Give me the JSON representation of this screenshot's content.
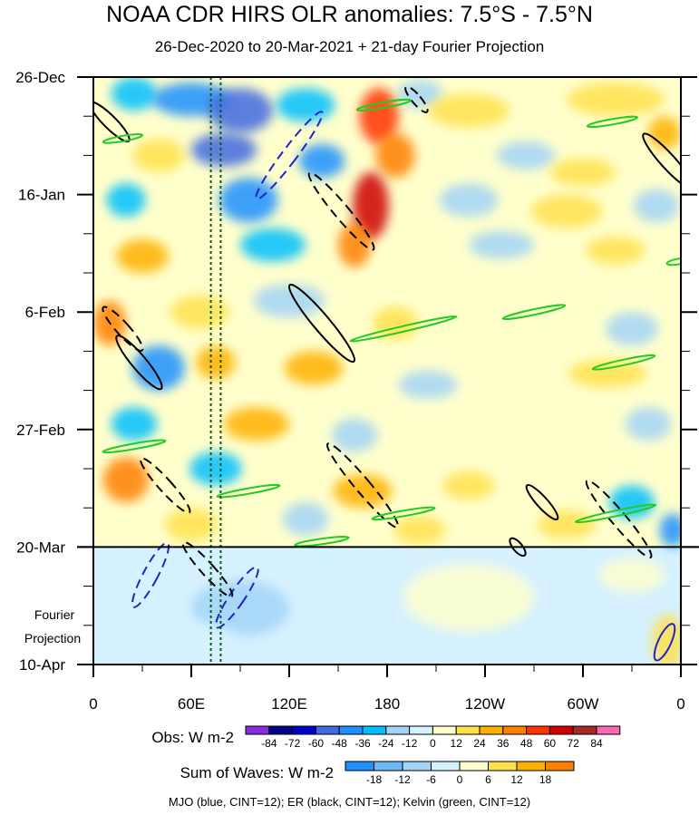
{
  "title": "NOAA CDR HIRS OLR anomalies: 7.5°S - 7.5°N",
  "subtitle": "26-Dec-2020 to 20-Mar-2021 + 21-day Fourier Projection",
  "projection_label_line1": "Fourier",
  "projection_label_line2": "Projection",
  "footer": "MJO (blue, CINT=12); ER (black, CINT=12); Kelvin (green, CINT=12)",
  "colors": {
    "mjo": "#2222cc",
    "er": "#000000",
    "kelvin": "#22cc22",
    "projection_line": "#000000"
  },
  "chart_data": {
    "type": "heatmap",
    "title": "NOAA CDR HIRS OLR anomalies: 7.5°S - 7.5°N",
    "subtitle": "26-Dec-2020 to 20-Mar-2021 + 21-day Fourier Projection",
    "x_ticks": [
      {
        "lon": 0,
        "label": "0"
      },
      {
        "lon": 60,
        "label": "60E"
      },
      {
        "lon": 120,
        "label": "120E"
      },
      {
        "lon": 180,
        "label": "180"
      },
      {
        "lon": 240,
        "label": "120W"
      },
      {
        "lon": 300,
        "label": "60W"
      },
      {
        "lon": 360,
        "label": "0"
      }
    ],
    "xlim": [
      0,
      360
    ],
    "y_ticks": [
      {
        "day": 0,
        "label": "26-Dec"
      },
      {
        "day": 21,
        "label": "16-Jan"
      },
      {
        "day": 42,
        "label": "6-Feb"
      },
      {
        "day": 63,
        "label": "27-Feb"
      },
      {
        "day": 84,
        "label": "20-Mar"
      },
      {
        "day": 105,
        "label": "10-Apr"
      }
    ],
    "ylim": [
      0,
      105
    ],
    "projection_start_day": 84,
    "reference_lon_lines": [
      72,
      78
    ],
    "obs_legend": {
      "label": "Obs: W m-2",
      "levels": [
        "-84",
        "-72",
        "-60",
        "-48",
        "-36",
        "-24",
        "-12",
        "0",
        "12",
        "24",
        "36",
        "48",
        "60",
        "72",
        "84"
      ],
      "colors": [
        "#8a2be2",
        "#00008b",
        "#0000cd",
        "#4169e1",
        "#1e90ff",
        "#00bfff",
        "#a3d4f7",
        "#d6f1ff",
        "#ffffcc",
        "#ffe14d",
        "#ffb000",
        "#ff7f00",
        "#ff3300",
        "#cc0000",
        "#a52a2a",
        "#ff69b4"
      ]
    },
    "waves_legend": {
      "label": "Sum of Waves: W m-2",
      "levels": [
        "-18",
        "-12",
        "-6",
        "0",
        "6",
        "12",
        "18"
      ],
      "colors": [
        "#1e90ff",
        "#6cb9f5",
        "#a3d4f7",
        "#d6f1ff",
        "#ffffcc",
        "#ffe14d",
        "#ffb000",
        "#ff7f00"
      ]
    },
    "anomaly_blobs": [
      {
        "lon": 25,
        "day": 3,
        "a": 14,
        "b": 3,
        "v": -30
      },
      {
        "lon": 60,
        "day": 4,
        "a": 24,
        "b": 3,
        "v": -40
      },
      {
        "lon": 90,
        "day": 6,
        "a": 20,
        "b": 4,
        "v": -55
      },
      {
        "lon": 130,
        "day": 5,
        "a": 18,
        "b": 3,
        "v": -35
      },
      {
        "lon": 175,
        "day": 7,
        "a": 12,
        "b": 5,
        "v": 55
      },
      {
        "lon": 200,
        "day": 3,
        "a": 14,
        "b": 2.5,
        "v": -15
      },
      {
        "lon": 230,
        "day": 6,
        "a": 25,
        "b": 3,
        "v": 18
      },
      {
        "lon": 320,
        "day": 4,
        "a": 30,
        "b": 3,
        "v": 22
      },
      {
        "lon": 350,
        "day": 10,
        "a": 10,
        "b": 3,
        "v": 28
      },
      {
        "lon": 40,
        "day": 14,
        "a": 16,
        "b": 3,
        "v": 24
      },
      {
        "lon": 80,
        "day": 13,
        "a": 20,
        "b": 3,
        "v": -48
      },
      {
        "lon": 140,
        "day": 15,
        "a": 14,
        "b": 3,
        "v": -42
      },
      {
        "lon": 185,
        "day": 14,
        "a": 12,
        "b": 4,
        "v": 48
      },
      {
        "lon": 265,
        "day": 14,
        "a": 18,
        "b": 2.5,
        "v": -14
      },
      {
        "lon": 300,
        "day": 17,
        "a": 20,
        "b": 2.5,
        "v": 20
      },
      {
        "lon": 20,
        "day": 22,
        "a": 12,
        "b": 3,
        "v": -26
      },
      {
        "lon": 95,
        "day": 22,
        "a": 18,
        "b": 4,
        "v": -38
      },
      {
        "lon": 170,
        "day": 23,
        "a": 11,
        "b": 6,
        "v": 72
      },
      {
        "lon": 230,
        "day": 22,
        "a": 18,
        "b": 3,
        "v": -20
      },
      {
        "lon": 290,
        "day": 24,
        "a": 22,
        "b": 3,
        "v": 15
      },
      {
        "lon": 345,
        "day": 23,
        "a": 14,
        "b": 3,
        "v": -22
      },
      {
        "lon": 30,
        "day": 32,
        "a": 16,
        "b": 3,
        "v": 30
      },
      {
        "lon": 110,
        "day": 30,
        "a": 20,
        "b": 3,
        "v": -32
      },
      {
        "lon": 160,
        "day": 30,
        "a": 10,
        "b": 4,
        "v": 45
      },
      {
        "lon": 250,
        "day": 30,
        "a": 20,
        "b": 2.5,
        "v": -12
      },
      {
        "lon": 320,
        "day": 31,
        "a": 18,
        "b": 2.5,
        "v": 16
      },
      {
        "lon": 10,
        "day": 44,
        "a": 10,
        "b": 4,
        "v": 40
      },
      {
        "lon": 65,
        "day": 42,
        "a": 18,
        "b": 3,
        "v": 24
      },
      {
        "lon": 120,
        "day": 40,
        "a": 22,
        "b": 3,
        "v": -22
      },
      {
        "lon": 185,
        "day": 44,
        "a": 14,
        "b": 3,
        "v": 22
      },
      {
        "lon": 270,
        "day": 44,
        "a": 20,
        "b": 2.5,
        "v": 12
      },
      {
        "lon": 330,
        "day": 45,
        "a": 16,
        "b": 3,
        "v": -20
      },
      {
        "lon": 40,
        "day": 52,
        "a": 16,
        "b": 4,
        "v": -45
      },
      {
        "lon": 75,
        "day": 51,
        "a": 12,
        "b": 3,
        "v": 32
      },
      {
        "lon": 135,
        "day": 52,
        "a": 18,
        "b": 3,
        "v": 26
      },
      {
        "lon": 205,
        "day": 55,
        "a": 18,
        "b": 2.5,
        "v": -14
      },
      {
        "lon": 315,
        "day": 53,
        "a": 24,
        "b": 2.5,
        "v": 14
      },
      {
        "lon": 25,
        "day": 62,
        "a": 14,
        "b": 3,
        "v": -30
      },
      {
        "lon": 100,
        "day": 62,
        "a": 20,
        "b": 3,
        "v": 28
      },
      {
        "lon": 160,
        "day": 64,
        "a": 14,
        "b": 3,
        "v": -20
      },
      {
        "lon": 250,
        "day": 63,
        "a": 18,
        "b": 2.5,
        "v": 12
      },
      {
        "lon": 340,
        "day": 62,
        "a": 14,
        "b": 3,
        "v": -18
      },
      {
        "lon": 20,
        "day": 72,
        "a": 14,
        "b": 4,
        "v": 44
      },
      {
        "lon": 75,
        "day": 70,
        "a": 16,
        "b": 3,
        "v": -24
      },
      {
        "lon": 165,
        "day": 74,
        "a": 18,
        "b": 3,
        "v": 36
      },
      {
        "lon": 230,
        "day": 73,
        "a": 16,
        "b": 2.5,
        "v": 14
      },
      {
        "lon": 330,
        "day": 76,
        "a": 14,
        "b": 3,
        "v": -34
      },
      {
        "lon": 60,
        "day": 80,
        "a": 16,
        "b": 3,
        "v": 24
      },
      {
        "lon": 130,
        "day": 79,
        "a": 14,
        "b": 3,
        "v": -22
      },
      {
        "lon": 200,
        "day": 81,
        "a": 16,
        "b": 2.5,
        "v": 18
      },
      {
        "lon": 290,
        "day": 80,
        "a": 18,
        "b": 2.5,
        "v": 16
      },
      {
        "lon": 355,
        "day": 81,
        "a": 8,
        "b": 3,
        "v": -44
      },
      {
        "lon": 20,
        "day": 92,
        "a": 40,
        "b": 6,
        "v": -8
      },
      {
        "lon": 90,
        "day": 95,
        "a": 30,
        "b": 5,
        "v": -14
      },
      {
        "lon": 150,
        "day": 90,
        "a": 20,
        "b": 4,
        "v": -8
      },
      {
        "lon": 230,
        "day": 93,
        "a": 40,
        "b": 6,
        "v": 7
      },
      {
        "lon": 330,
        "day": 89,
        "a": 20,
        "b": 3,
        "v": 12
      },
      {
        "lon": 352,
        "day": 101,
        "a": 10,
        "b": 5,
        "v": 14
      },
      {
        "lon": 50,
        "day": 101,
        "a": 40,
        "b": 4,
        "v": -8
      }
    ],
    "wave_contours": [
      {
        "wave": "MJO",
        "value": -12,
        "lon": 120,
        "day": 14,
        "rx": 8,
        "ry": 60,
        "angle": 37
      },
      {
        "wave": "MJO",
        "value": -12,
        "lon": 88,
        "day": 93,
        "rx": 8,
        "ry": 40,
        "angle": 34
      },
      {
        "wave": "MJO",
        "value": -12,
        "lon": 35,
        "day": 89,
        "rx": 8,
        "ry": 40,
        "angle": 28
      },
      {
        "wave": "MJO",
        "value": 12,
        "lon": 350,
        "day": 101,
        "rx": 7,
        "ry": 22,
        "angle": 25
      },
      {
        "wave": "ER",
        "value": 12,
        "lon": 10,
        "day": 8,
        "rx": 7,
        "ry": 30,
        "angle": -45
      },
      {
        "wave": "ER",
        "value": 12,
        "lon": 140,
        "day": 44,
        "rx": 9,
        "ry": 55,
        "angle": -40
      },
      {
        "wave": "ER",
        "value": 12,
        "lon": 28,
        "day": 51,
        "rx": 8,
        "ry": 38,
        "angle": -40
      },
      {
        "wave": "ER",
        "value": 12,
        "lon": 275,
        "day": 76,
        "rx": 6,
        "ry": 25,
        "angle": -42
      },
      {
        "wave": "ER",
        "value": 12,
        "lon": 352,
        "day": 15,
        "rx": 8,
        "ry": 40,
        "angle": -42
      },
      {
        "wave": "ER",
        "value": 12,
        "lon": 260,
        "day": 84,
        "rx": 5,
        "ry": 12,
        "angle": -40
      },
      {
        "wave": "ER",
        "value": -12,
        "lon": 152,
        "day": 24,
        "rx": 8,
        "ry": 55,
        "angle": -40
      },
      {
        "wave": "ER",
        "value": -12,
        "lon": 165,
        "day": 73,
        "rx": 8,
        "ry": 60,
        "angle": -40
      },
      {
        "wave": "ER",
        "value": -12,
        "lon": 18,
        "day": 45,
        "rx": 7,
        "ry": 32,
        "angle": -42
      },
      {
        "wave": "ER",
        "value": -12,
        "lon": 44,
        "day": 73,
        "rx": 7,
        "ry": 40,
        "angle": -42
      },
      {
        "wave": "ER",
        "value": -12,
        "lon": 70,
        "day": 88,
        "rx": 7,
        "ry": 40,
        "angle": -42
      },
      {
        "wave": "ER",
        "value": -12,
        "lon": 322,
        "day": 79,
        "rx": 8,
        "ry": 55,
        "angle": -40
      },
      {
        "wave": "ER",
        "value": -12,
        "lon": 198,
        "day": 4,
        "rx": 5,
        "ry": 18,
        "angle": -40
      },
      {
        "wave": "Kelvin",
        "value": 12,
        "lon": 18,
        "day": 11,
        "rx": 3,
        "ry": 22,
        "angle": 80
      },
      {
        "wave": "Kelvin",
        "value": 12,
        "lon": 190,
        "day": 45,
        "rx": 3,
        "ry": 60,
        "angle": 77
      },
      {
        "wave": "Kelvin",
        "value": 12,
        "lon": 270,
        "day": 42,
        "rx": 3,
        "ry": 35,
        "angle": 78
      },
      {
        "wave": "Kelvin",
        "value": 12,
        "lon": 325,
        "day": 51,
        "rx": 3,
        "ry": 35,
        "angle": 78
      },
      {
        "wave": "Kelvin",
        "value": 12,
        "lon": 25,
        "day": 66,
        "rx": 3,
        "ry": 35,
        "angle": 80
      },
      {
        "wave": "Kelvin",
        "value": 12,
        "lon": 95,
        "day": 74,
        "rx": 3,
        "ry": 35,
        "angle": 80
      },
      {
        "wave": "Kelvin",
        "value": 12,
        "lon": 190,
        "day": 78,
        "rx": 3,
        "ry": 35,
        "angle": 80
      },
      {
        "wave": "Kelvin",
        "value": 12,
        "lon": 320,
        "day": 78,
        "rx": 3,
        "ry": 45,
        "angle": 78
      },
      {
        "wave": "Kelvin",
        "value": 12,
        "lon": 140,
        "day": 83,
        "rx": 3,
        "ry": 30,
        "angle": 82
      },
      {
        "wave": "Kelvin",
        "value": 12,
        "lon": 178,
        "day": 5,
        "rx": 3,
        "ry": 30,
        "angle": 80
      },
      {
        "wave": "Kelvin",
        "value": 12,
        "lon": 318,
        "day": 8,
        "rx": 3,
        "ry": 28,
        "angle": 80
      },
      {
        "wave": "Kelvin",
        "value": 12,
        "lon": 358,
        "day": 33,
        "rx": 3,
        "ry": 12,
        "angle": 80
      }
    ]
  }
}
